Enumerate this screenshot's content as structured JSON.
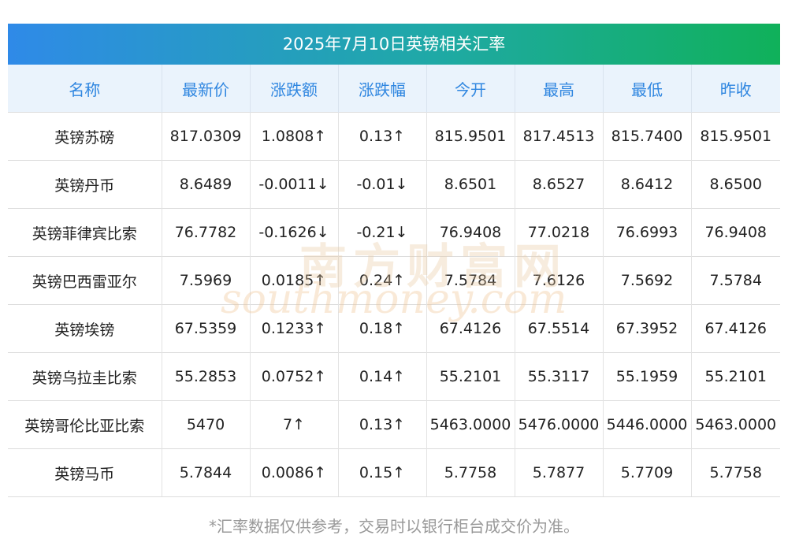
{
  "title": "2025年7月10日英镑相关汇率",
  "columns": [
    "名称",
    "最新价",
    "涨跌额",
    "涨跌幅",
    "今开",
    "最高",
    "最低",
    "昨收"
  ],
  "rows": [
    {
      "name": "英镑苏磅",
      "latest": "817.0309",
      "change": "1.0808↑",
      "change_pct": "0.13↑",
      "open": "815.9501",
      "high": "817.4513",
      "low": "815.7400",
      "prev_close": "815.9501",
      "trend": "up"
    },
    {
      "name": "英镑丹币",
      "latest": "8.6489",
      "change": "-0.0011↓",
      "change_pct": "-0.01↓",
      "open": "8.6501",
      "high": "8.6527",
      "low": "8.6412",
      "prev_close": "8.6500",
      "trend": "down"
    },
    {
      "name": "英镑菲律宾比索",
      "latest": "76.7782",
      "change": "-0.1626↓",
      "change_pct": "-0.21↓",
      "open": "76.9408",
      "high": "77.0218",
      "low": "76.6993",
      "prev_close": "76.9408",
      "trend": "down"
    },
    {
      "name": "英镑巴西雷亚尔",
      "latest": "7.5969",
      "change": "0.0185↑",
      "change_pct": "0.24↑",
      "open": "7.5784",
      "high": "7.6126",
      "low": "7.5692",
      "prev_close": "7.5784",
      "trend": "up"
    },
    {
      "name": "英镑埃镑",
      "latest": "67.5359",
      "change": "0.1233↑",
      "change_pct": "0.18↑",
      "open": "67.4126",
      "high": "67.5514",
      "low": "67.3952",
      "prev_close": "67.4126",
      "trend": "up"
    },
    {
      "name": "英镑乌拉圭比索",
      "latest": "55.2853",
      "change": "0.0752↑",
      "change_pct": "0.14↑",
      "open": "55.2101",
      "high": "55.3117",
      "low": "55.1959",
      "prev_close": "55.2101",
      "trend": "up"
    },
    {
      "name": "英镑哥伦比亚比索",
      "latest": "5470",
      "change": "7↑",
      "change_pct": "0.13↑",
      "open": "5463.0000",
      "high": "5476.0000",
      "low": "5446.0000",
      "prev_close": "5463.0000",
      "trend": "up"
    },
    {
      "name": "英镑马币",
      "latest": "5.7844",
      "change": "0.0086↑",
      "change_pct": "0.15↑",
      "open": "5.7758",
      "high": "5.7877",
      "low": "5.7709",
      "prev_close": "5.7758",
      "trend": "up"
    }
  ],
  "footnote": "*汇率数据仅供参考，交易时以银行柜台成交价为准。",
  "watermark": {
    "cn": "南方财富网",
    "en": "southmoney.com"
  },
  "colors": {
    "up": "#e8252c",
    "down": "#1c8a2b",
    "header_text": "#2f86e0",
    "title_start": "#2f8ae8",
    "title_end": "#10b15a"
  }
}
